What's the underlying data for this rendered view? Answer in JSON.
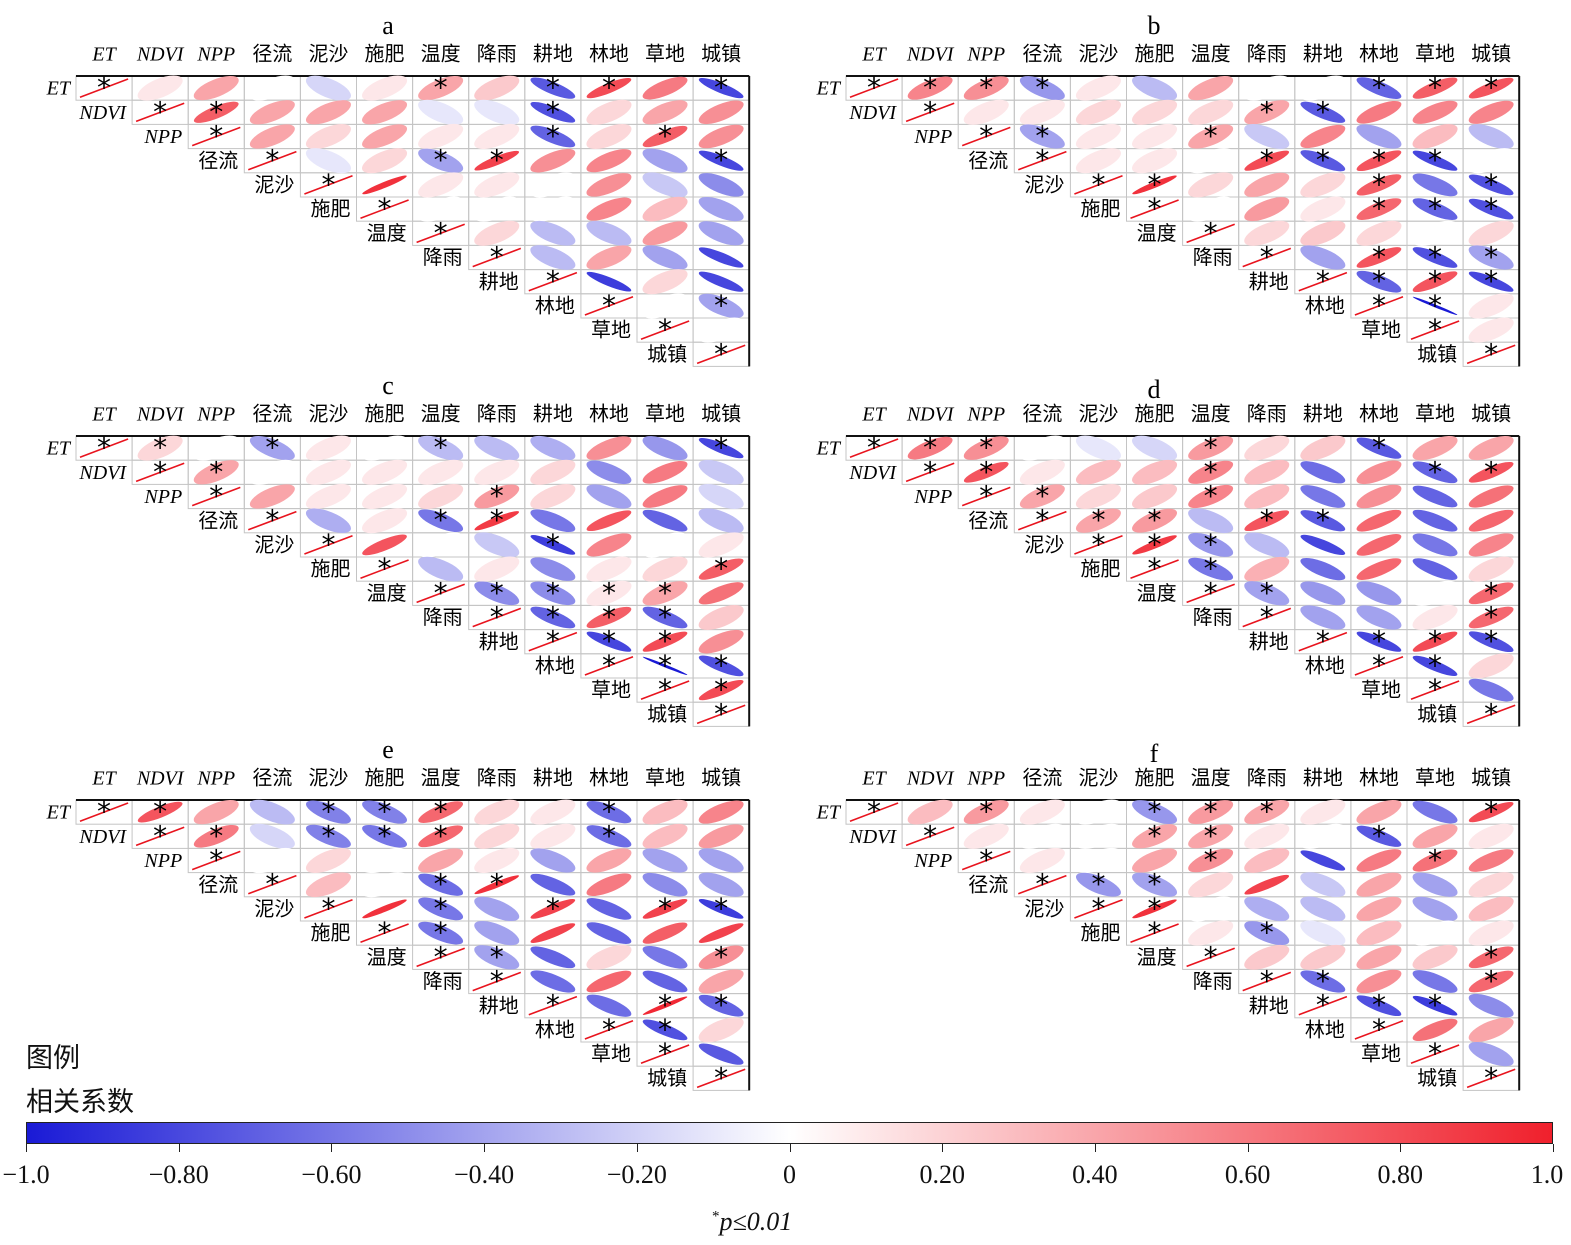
{
  "legend": {
    "title_line1": "图例",
    "title_line2": "相关系数",
    "ticks": [
      "−1.0",
      "−0.80",
      "−0.60",
      "−0.40",
      "−0.20",
      "0",
      "0.20",
      "0.40",
      "0.60",
      "0.80",
      "1.0"
    ],
    "tick_values": [
      -1.0,
      -0.8,
      -0.6,
      -0.4,
      -0.2,
      0,
      0.2,
      0.4,
      0.6,
      0.8,
      1.0
    ],
    "color_min": "#1a1ad6",
    "color_mid": "#ffffff",
    "color_max": "#f0202c",
    "note_sup": "*",
    "note": "p≤0.01"
  },
  "chart_data": [
    {
      "type": "heatmap",
      "title": "a",
      "variables": [
        "ET",
        "NDVI",
        "NPP",
        "径流",
        "泥沙",
        "施肥",
        "温度",
        "降雨",
        "耕地",
        "林地",
        "草地",
        "城镇"
      ],
      "matrix_upper": [
        [
          0.05,
          0.3,
          0.0,
          -0.1,
          0.05,
          0.3,
          0.15,
          -0.65,
          0.75,
          0.5,
          -0.75
        ],
        [
          0.65,
          0.3,
          0.3,
          0.3,
          -0.05,
          -0.05,
          -0.7,
          0.1,
          0.3,
          0.4
        ],
        [
          0.3,
          0.1,
          0.3,
          0.05,
          0.05,
          -0.6,
          0.1,
          0.65,
          0.4
        ],
        [
          -0.05,
          0.1,
          -0.3,
          0.8,
          0.4,
          0.45,
          -0.3,
          -0.75
        ],
        [
          0.9,
          0.05,
          0.05,
          0.0,
          0.4,
          -0.15,
          -0.4
        ],
        [
          0.0,
          0.0,
          0.0,
          0.45,
          0.2,
          -0.3
        ],
        [
          0.1,
          -0.2,
          -0.2,
          0.35,
          -0.3
        ],
        [
          -0.2,
          0.3,
          -0.3,
          -0.75
        ],
        [
          -0.8,
          0.1,
          -0.75
        ],
        [
          0.0,
          -0.3
        ],
        [
          0.0
        ]
      ],
      "significant": [
        [
          0,
          0,
          0,
          0,
          0,
          1,
          0,
          1,
          1,
          0,
          1
        ],
        [
          1,
          0,
          0,
          0,
          0,
          0,
          1,
          0,
          0,
          0
        ],
        [
          0,
          0,
          0,
          0,
          0,
          1,
          0,
          1,
          0
        ],
        [
          0,
          0,
          1,
          1,
          0,
          0,
          0,
          1
        ],
        [
          0,
          0,
          0,
          0,
          0,
          0,
          0
        ],
        [
          0,
          0,
          0,
          0,
          0,
          0
        ],
        [
          0,
          0,
          0,
          0,
          0
        ],
        [
          0,
          0,
          0,
          0
        ],
        [
          0,
          0,
          0
        ],
        [
          0,
          1
        ],
        [
          0
        ]
      ]
    },
    {
      "type": "heatmap",
      "title": "b",
      "variables": [
        "ET",
        "NDVI",
        "NPP",
        "径流",
        "泥沙",
        "施肥",
        "温度",
        "降雨",
        "耕地",
        "林地",
        "草地",
        "城镇"
      ],
      "matrix_upper": [
        [
          0.45,
          0.4,
          -0.35,
          0.05,
          -0.2,
          0.3,
          0.0,
          0.0,
          -0.6,
          0.65,
          0.7
        ],
        [
          0.05,
          0.05,
          0.1,
          0.1,
          0.1,
          0.3,
          -0.65,
          0.5,
          0.45,
          0.45
        ],
        [
          -0.3,
          0.05,
          0.05,
          0.3,
          -0.15,
          0.45,
          -0.3,
          0.2,
          -0.2
        ],
        [
          0.05,
          0.05,
          0.0,
          0.75,
          -0.65,
          0.7,
          -0.75,
          0.0
        ],
        [
          0.9,
          0.1,
          0.3,
          0.1,
          0.65,
          -0.5,
          -0.7
        ],
        [
          0.0,
          0.35,
          0.05,
          0.6,
          -0.6,
          -0.7
        ],
        [
          0.1,
          0.15,
          0.1,
          0.0,
          0.1
        ],
        [
          -0.3,
          0.7,
          -0.7,
          -0.3
        ],
        [
          -0.6,
          0.7,
          -0.75
        ],
        [
          -1.0,
          0.05
        ],
        [
          0.05
        ]
      ],
      "significant": [
        [
          1,
          1,
          1,
          0,
          0,
          0,
          0,
          0,
          1,
          1,
          1
        ],
        [
          0,
          0,
          0,
          0,
          0,
          1,
          1,
          0,
          0,
          0
        ],
        [
          1,
          0,
          0,
          1,
          0,
          0,
          0,
          0,
          0
        ],
        [
          0,
          0,
          0,
          1,
          1,
          1,
          1,
          0
        ],
        [
          1,
          0,
          0,
          0,
          1,
          0,
          1
        ],
        [
          0,
          0,
          0,
          1,
          1,
          1
        ],
        [
          0,
          0,
          0,
          0,
          0
        ],
        [
          0,
          1,
          1,
          1
        ],
        [
          1,
          1,
          1
        ],
        [
          1,
          0
        ],
        [
          0
        ]
      ]
    },
    {
      "type": "heatmap",
      "title": "c",
      "variables": [
        "ET",
        "NDVI",
        "NPP",
        "径流",
        "泥沙",
        "施肥",
        "温度",
        "降雨",
        "耕地",
        "林地",
        "草地",
        "城镇"
      ],
      "matrix_upper": [
        [
          0.1,
          0.0,
          -0.3,
          0.05,
          0.0,
          -0.2,
          -0.2,
          -0.25,
          0.4,
          -0.35,
          -0.75
        ],
        [
          0.3,
          0.0,
          0.05,
          0.05,
          0.05,
          0.05,
          0.1,
          -0.4,
          0.5,
          -0.15
        ],
        [
          0.3,
          0.05,
          0.05,
          0.1,
          0.35,
          0.1,
          -0.3,
          0.5,
          -0.1
        ],
        [
          -0.25,
          0.05,
          -0.5,
          0.85,
          -0.5,
          0.7,
          -0.6,
          -0.2
        ],
        [
          0.7,
          0.0,
          -0.15,
          -0.8,
          0.45,
          0.0,
          0.05
        ],
        [
          -0.2,
          0.05,
          -0.4,
          0.05,
          0.1,
          0.65
        ],
        [
          -0.4,
          -0.4,
          0.05,
          0.3,
          0.55
        ],
        [
          -0.6,
          0.65,
          -0.6,
          0.15
        ],
        [
          -0.75,
          0.75,
          0.4
        ],
        [
          -1.0,
          -0.7
        ],
        [
          0.75
        ]
      ],
      "significant": [
        [
          1,
          0,
          1,
          0,
          0,
          1,
          0,
          0,
          0,
          0,
          1
        ],
        [
          1,
          0,
          0,
          0,
          0,
          0,
          0,
          0,
          0,
          0
        ],
        [
          0,
          0,
          0,
          0,
          1,
          0,
          0,
          0,
          0
        ],
        [
          0,
          0,
          1,
          1,
          0,
          0,
          0,
          0
        ],
        [
          0,
          0,
          0,
          1,
          0,
          0,
          0
        ],
        [
          0,
          0,
          0,
          0,
          0,
          1
        ],
        [
          1,
          1,
          1,
          1,
          0
        ],
        [
          1,
          1,
          1,
          0
        ],
        [
          1,
          1,
          0
        ],
        [
          1,
          1
        ],
        [
          1
        ]
      ]
    },
    {
      "type": "heatmap",
      "title": "d",
      "variables": [
        "ET",
        "NDVI",
        "NPP",
        "径流",
        "泥沙",
        "施肥",
        "温度",
        "降雨",
        "耕地",
        "林地",
        "草地",
        "城镇"
      ],
      "matrix_upper": [
        [
          0.5,
          0.4,
          0.0,
          -0.05,
          -0.1,
          0.35,
          0.1,
          0.15,
          -0.65,
          0.3,
          0.3
        ],
        [
          0.7,
          0.05,
          0.2,
          0.2,
          0.45,
          0.2,
          -0.55,
          0.4,
          -0.6,
          0.7
        ],
        [
          0.3,
          0.1,
          0.15,
          0.45,
          0.2,
          -0.5,
          0.4,
          -0.6,
          0.55
        ],
        [
          0.3,
          0.35,
          -0.2,
          0.7,
          -0.65,
          0.6,
          -0.6,
          0.6
        ],
        [
          0.85,
          -0.35,
          -0.2,
          -0.75,
          0.6,
          -0.5,
          0.45
        ],
        [
          -0.5,
          0.25,
          -0.55,
          0.6,
          -0.6,
          0.1
        ],
        [
          -0.3,
          -0.35,
          -0.35,
          0.0,
          0.6
        ],
        [
          -0.3,
          -0.3,
          0.05,
          0.6
        ],
        [
          -0.75,
          0.75,
          -0.7
        ],
        [
          -0.75,
          0.1
        ],
        [
          -0.5
        ]
      ],
      "significant": [
        [
          1,
          1,
          0,
          0,
          0,
          1,
          0,
          0,
          1,
          0,
          0
        ],
        [
          1,
          0,
          0,
          0,
          1,
          0,
          0,
          0,
          1,
          1
        ],
        [
          1,
          0,
          0,
          1,
          0,
          0,
          0,
          0,
          0
        ],
        [
          1,
          1,
          0,
          1,
          1,
          0,
          0,
          0
        ],
        [
          1,
          1,
          0,
          0,
          0,
          0,
          0
        ],
        [
          1,
          0,
          0,
          0,
          0,
          0
        ],
        [
          1,
          0,
          0,
          0,
          1
        ],
        [
          0,
          0,
          0,
          1
        ],
        [
          1,
          1,
          1
        ],
        [
          1,
          0
        ],
        [
          0
        ]
      ]
    },
    {
      "type": "heatmap",
      "title": "e",
      "variables": [
        "ET",
        "NDVI",
        "NPP",
        "径流",
        "泥沙",
        "施肥",
        "温度",
        "降雨",
        "耕地",
        "林地",
        "草地",
        "城镇"
      ],
      "matrix_upper": [
        [
          0.7,
          0.3,
          -0.2,
          -0.45,
          -0.45,
          0.6,
          0.1,
          0.05,
          -0.55,
          0.2,
          0.45
        ],
        [
          0.5,
          -0.1,
          -0.45,
          -0.5,
          0.6,
          0.1,
          0.05,
          -0.55,
          0.2,
          0.35
        ],
        [
          0.0,
          0.1,
          0.0,
          0.3,
          0.05,
          -0.3,
          0.3,
          -0.3,
          -0.3
        ],
        [
          0.2,
          0.0,
          -0.55,
          0.9,
          -0.6,
          0.5,
          -0.4,
          -0.3
        ],
        [
          0.9,
          -0.5,
          -0.3,
          0.8,
          -0.6,
          0.8,
          -0.8
        ],
        [
          -0.5,
          -0.3,
          0.8,
          -0.6,
          0.65,
          0.8
        ],
        [
          -0.3,
          -0.6,
          0.1,
          -0.5,
          0.4
        ],
        [
          -0.55,
          0.6,
          -0.6,
          0.3
        ],
        [
          -0.55,
          0.95,
          -0.6
        ],
        [
          -0.7,
          0.1
        ],
        [
          -0.65
        ]
      ],
      "significant": [
        [
          1,
          0,
          0,
          1,
          1,
          1,
          0,
          0,
          1,
          0,
          0
        ],
        [
          1,
          0,
          1,
          1,
          1,
          0,
          0,
          1,
          0,
          0
        ],
        [
          0,
          0,
          0,
          0,
          0,
          0,
          0,
          0,
          0
        ],
        [
          0,
          0,
          1,
          1,
          0,
          0,
          0,
          0
        ],
        [
          0,
          1,
          0,
          1,
          0,
          1,
          1
        ],
        [
          1,
          0,
          0,
          0,
          0,
          0
        ],
        [
          1,
          0,
          0,
          0,
          1
        ],
        [
          0,
          0,
          0,
          0
        ],
        [
          0,
          1,
          1
        ],
        [
          1,
          0
        ],
        [
          0
        ]
      ]
    },
    {
      "type": "heatmap",
      "title": "f",
      "variables": [
        "ET",
        "NDVI",
        "NPP",
        "径流",
        "泥沙",
        "施肥",
        "温度",
        "降雨",
        "耕地",
        "林地",
        "草地",
        "城镇"
      ],
      "matrix_upper": [
        [
          0.2,
          0.35,
          0.05,
          0.0,
          -0.35,
          0.35,
          0.3,
          0.05,
          0.3,
          -0.5,
          0.75
        ],
        [
          0.05,
          0.0,
          0.0,
          0.3,
          0.3,
          0.05,
          0.0,
          -0.65,
          0.3,
          0.05
        ],
        [
          0.05,
          0.0,
          0.3,
          0.4,
          0.2,
          -0.75,
          0.5,
          0.55,
          0.5
        ],
        [
          -0.35,
          -0.3,
          0.1,
          0.8,
          -0.15,
          0.3,
          -0.3,
          0.1
        ],
        [
          0.9,
          0.0,
          -0.25,
          -0.2,
          0.3,
          -0.3,
          0.2
        ],
        [
          0.05,
          -0.35,
          -0.05,
          0.2,
          0.0,
          0.05
        ],
        [
          0.15,
          0.15,
          0.3,
          0.15,
          0.6
        ],
        [
          -0.55,
          0.4,
          -0.5,
          0.6
        ],
        [
          -0.7,
          -0.8,
          -0.4
        ],
        [
          0.55,
          0.3
        ],
        [
          -0.3
        ]
      ],
      "significant": [
        [
          0,
          1,
          0,
          0,
          1,
          1,
          1,
          0,
          0,
          0,
          1
        ],
        [
          0,
          0,
          0,
          1,
          1,
          0,
          0,
          1,
          0,
          0
        ],
        [
          0,
          0,
          0,
          1,
          0,
          0,
          0,
          1,
          0
        ],
        [
          1,
          1,
          0,
          0,
          0,
          0,
          0,
          0
        ],
        [
          1,
          0,
          0,
          0,
          0,
          0,
          0
        ],
        [
          0,
          1,
          0,
          0,
          0,
          0
        ],
        [
          0,
          0,
          0,
          0,
          1
        ],
        [
          1,
          0,
          0,
          1
        ],
        [
          1,
          1,
          0
        ],
        [
          0,
          0
        ],
        [
          0
        ]
      ]
    }
  ]
}
